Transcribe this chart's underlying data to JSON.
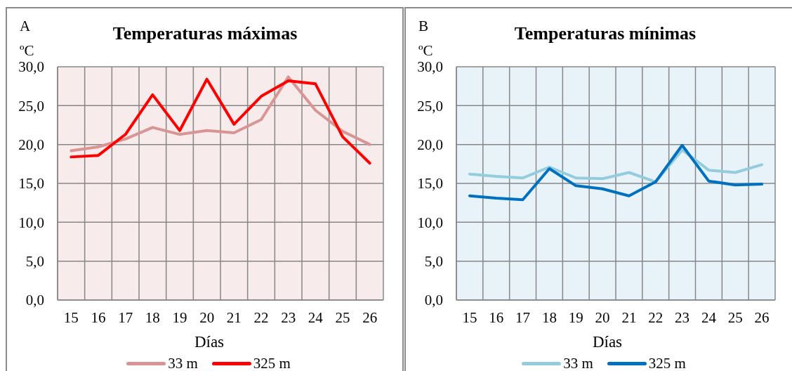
{
  "chart_data": [
    {
      "type": "line",
      "title": "Temperaturas máximas",
      "xlabel": "Días",
      "ylabel": "ºC",
      "annotations": [
        "A"
      ],
      "categories": [
        "15",
        "16",
        "17",
        "18",
        "19",
        "20",
        "21",
        "22",
        "23",
        "24",
        "25",
        "26"
      ],
      "series": [
        {
          "name": "33 m",
          "color": "#d99594",
          "values": [
            19.2,
            19.7,
            20.7,
            22.2,
            21.3,
            21.8,
            21.5,
            23.2,
            28.7,
            24.4,
            21.7,
            20.0
          ]
        },
        {
          "name": "325 m",
          "color": "#ff0000",
          "values": [
            18.4,
            18.6,
            21.3,
            26.4,
            21.8,
            28.4,
            22.6,
            26.2,
            28.2,
            27.8,
            21.0,
            17.6
          ]
        }
      ],
      "ylim": [
        0,
        30
      ],
      "yticks": [
        {
          "value": 0,
          "label": "0,0"
        },
        {
          "value": 5,
          "label": "5,0"
        },
        {
          "value": 10,
          "label": "10,0"
        },
        {
          "value": 15,
          "label": "15,0"
        },
        {
          "value": 20,
          "label": "20,0"
        },
        {
          "value": 25,
          "label": "25,0"
        },
        {
          "value": 30,
          "label": "30,0"
        }
      ],
      "grid": true,
      "legend": "bottom",
      "marker": "none",
      "line_style": "solid"
    },
    {
      "type": "line",
      "title": "Temperaturas mínimas",
      "xlabel": "Días",
      "ylabel": "ºC",
      "annotations": [
        "B"
      ],
      "categories": [
        "15",
        "16",
        "17",
        "18",
        "19",
        "20",
        "21",
        "22",
        "23",
        "24",
        "25",
        "26"
      ],
      "series": [
        {
          "name": "33 m",
          "color": "#93cddd",
          "values": [
            16.2,
            15.9,
            15.7,
            17.1,
            15.7,
            15.6,
            16.4,
            15.2,
            19.3,
            16.7,
            16.4,
            17.4
          ]
        },
        {
          "name": "325 m",
          "color": "#0070c0",
          "values": [
            13.4,
            13.1,
            12.9,
            16.9,
            14.7,
            14.3,
            13.4,
            15.2,
            19.9,
            15.3,
            14.8,
            14.9
          ]
        }
      ],
      "ylim": [
        0,
        30
      ],
      "yticks": [
        {
          "value": 0,
          "label": "0,0"
        },
        {
          "value": 5,
          "label": "5,0"
        },
        {
          "value": 10,
          "label": "10,0"
        },
        {
          "value": 15,
          "label": "15,0"
        },
        {
          "value": 20,
          "label": "20,0"
        },
        {
          "value": 25,
          "label": "25,0"
        },
        {
          "value": 30,
          "label": "30,0"
        }
      ],
      "grid": true,
      "legend": "bottom",
      "marker": "none",
      "line_style": "solid"
    }
  ]
}
